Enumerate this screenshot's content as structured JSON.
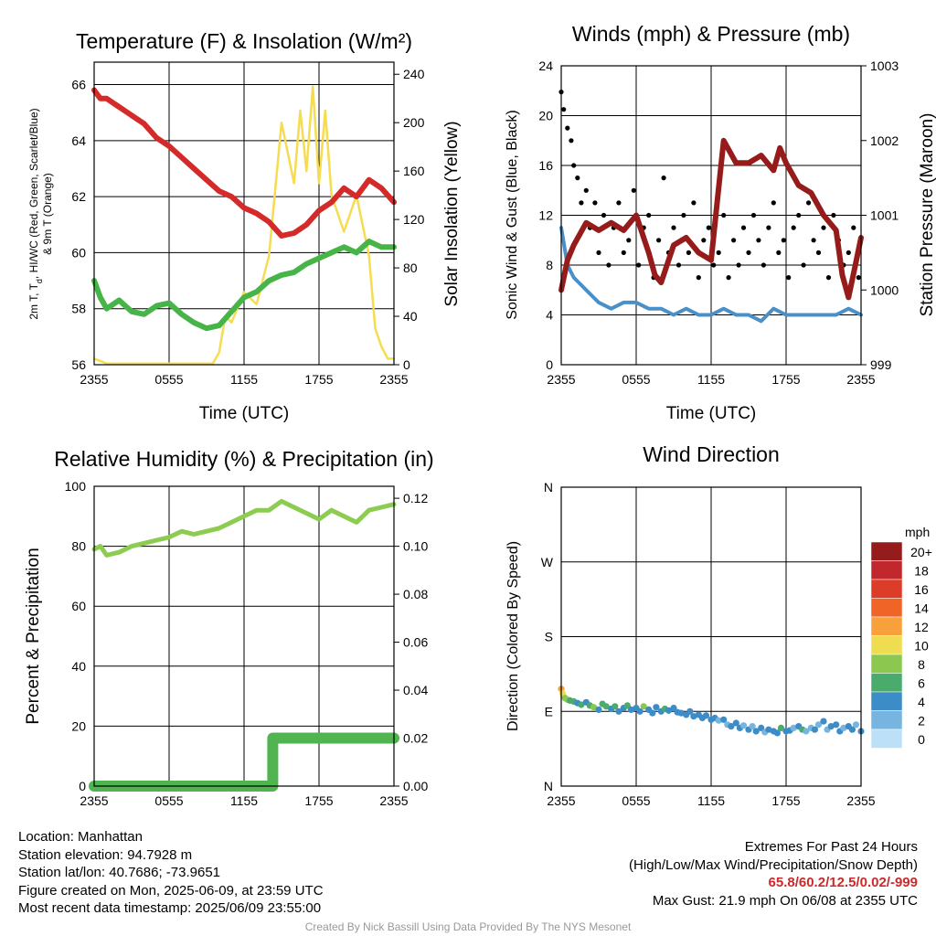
{
  "chart_data": [
    {
      "type": "line",
      "title": "Temperature (F) & Insolation (W/m²)",
      "xlabel": "Time (UTC)",
      "ylabel": "2m T, Td, HI/WC (Red, Green, Scarlet/Blue) & 9m T (Orange)",
      "ylabel_lines": [
        "2m T, T",
        "d",
        ", HI/WC (Red, Green, Scarlet/Blue)",
        "& 9m T (Orange)"
      ],
      "ylabel_right": "Solar Insolation (Yellow)",
      "x_ticks": [
        "2355",
        "0555",
        "1155",
        "1755",
        "2355"
      ],
      "ylim": [
        56,
        66.8
      ],
      "y_ticks": [
        56,
        58,
        60,
        62,
        64,
        66
      ],
      "ylim_right": [
        0,
        250
      ],
      "y_ticks_right": [
        0,
        40,
        80,
        120,
        160,
        200,
        240
      ],
      "grid": true,
      "series": [
        {
          "color": "#d42a2a",
          "axis": "left",
          "x": [
            0,
            0.5,
            1,
            2,
            3,
            4,
            5,
            6,
            7,
            8,
            9,
            10,
            11,
            12,
            13,
            14,
            15,
            16,
            17,
            18,
            19,
            20,
            21,
            22,
            23,
            24
          ],
          "y": [
            65.8,
            65.5,
            65.5,
            65.2,
            64.9,
            64.6,
            64.1,
            63.8,
            63.4,
            63.0,
            62.6,
            62.2,
            62.0,
            61.6,
            61.4,
            61.1,
            60.6,
            60.7,
            61.0,
            61.5,
            61.8,
            62.3,
            62.0,
            62.6,
            62.3,
            61.8
          ]
        },
        {
          "color": "#46b446",
          "axis": "left",
          "x": [
            0,
            0.5,
            1,
            2,
            3,
            4,
            5,
            6,
            7,
            8,
            9,
            10,
            11,
            12,
            13,
            14,
            15,
            16,
            17,
            18,
            19,
            20,
            21,
            22,
            23,
            24
          ],
          "y": [
            59.0,
            58.4,
            58.0,
            58.3,
            57.9,
            57.8,
            58.1,
            58.2,
            57.8,
            57.5,
            57.3,
            57.4,
            57.9,
            58.4,
            58.6,
            59.0,
            59.2,
            59.3,
            59.6,
            59.8,
            60.0,
            60.2,
            60.0,
            60.4,
            60.2,
            60.2
          ]
        },
        {
          "color": "#f5dc50",
          "axis": "right",
          "x": [
            0,
            1,
            2,
            3,
            4,
            5,
            6,
            7,
            8,
            9,
            9.5,
            10,
            10.5,
            11,
            12,
            13,
            14,
            15,
            16,
            16.5,
            17,
            17.5,
            18,
            18.5,
            19,
            20,
            21,
            22,
            22.5,
            23,
            23.5,
            24
          ],
          "y": [
            5,
            1,
            1,
            1,
            1,
            1,
            1,
            1,
            1,
            1,
            1,
            10,
            40,
            35,
            60,
            50,
            90,
            200,
            150,
            210,
            160,
            230,
            150,
            210,
            140,
            110,
            140,
            90,
            30,
            15,
            5,
            5
          ]
        }
      ]
    },
    {
      "type": "line",
      "title": "Winds (mph) & Pressure (mb)",
      "xlabel": "Time (UTC)",
      "ylabel": "Sonic Wind & Gust (Blue, Black)",
      "ylabel_right": "Station Pressure (Maroon)",
      "x_ticks": [
        "2355",
        "0555",
        "1155",
        "1755",
        "2355"
      ],
      "ylim": [
        0,
        24
      ],
      "y_ticks": [
        0,
        4,
        8,
        12,
        16,
        20,
        24
      ],
      "ylim_right": [
        999,
        1003
      ],
      "y_ticks_right": [
        999,
        1000,
        1001,
        1002,
        1003
      ],
      "grid": true,
      "series": [
        {
          "color": "#4a90c8",
          "axis": "left",
          "style": "line",
          "x": [
            0,
            0.5,
            1,
            2,
            3,
            4,
            5,
            6,
            7,
            8,
            9,
            10,
            11,
            12,
            13,
            14,
            15,
            16,
            17,
            18,
            19,
            20,
            21,
            22,
            23,
            24
          ],
          "y": [
            11,
            8,
            7,
            6,
            5,
            4.5,
            5,
            5,
            4.5,
            4.5,
            4,
            4.5,
            4,
            4,
            4.5,
            4,
            4,
            3.5,
            4.5,
            4,
            4,
            4,
            4,
            4,
            4.5,
            4
          ]
        },
        {
          "color": "#000000",
          "axis": "left",
          "style": "dots",
          "x": [
            0,
            0.2,
            0.5,
            0.8,
            1,
            1.3,
            1.6,
            2,
            2.3,
            2.7,
            3,
            3.4,
            3.8,
            4.2,
            4.6,
            5,
            5.4,
            5.8,
            6.2,
            6.6,
            7,
            7.4,
            7.8,
            8.2,
            8.6,
            9,
            9.4,
            9.8,
            10.2,
            10.6,
            11,
            11.4,
            11.8,
            12.2,
            12.6,
            13,
            13.4,
            13.8,
            14.2,
            14.6,
            15,
            15.4,
            15.8,
            16.2,
            16.6,
            17,
            17.4,
            17.8,
            18.2,
            18.6,
            19,
            19.4,
            19.8,
            20.2,
            20.6,
            21,
            21.4,
            21.8,
            22.2,
            22.6,
            23,
            23.4,
            23.8
          ],
          "y": [
            21.9,
            20.5,
            19,
            18,
            16,
            15,
            13,
            14,
            11,
            13,
            9,
            12,
            8,
            11,
            13,
            9,
            10,
            14,
            8,
            11,
            12,
            7,
            10,
            15,
            9,
            11,
            8,
            12,
            9,
            13,
            7,
            10,
            11,
            8,
            9,
            12,
            7,
            10,
            8,
            11,
            9,
            12,
            10,
            8,
            11,
            13,
            9,
            10,
            7,
            11,
            12,
            8,
            13,
            10,
            9,
            11,
            7,
            12,
            10,
            8,
            9,
            11,
            7
          ]
        },
        {
          "color": "#961c1c",
          "axis": "right",
          "style": "line",
          "x": [
            0,
            0.5,
            1,
            2,
            3,
            4,
            5,
            6,
            7,
            7.5,
            8,
            9,
            10,
            11,
            12,
            12.5,
            13,
            14,
            15,
            16,
            17,
            17.5,
            18,
            19,
            20,
            21,
            22,
            22.5,
            23,
            23.5,
            24
          ],
          "y": [
            1000.0,
            1000.4,
            1000.6,
            1000.9,
            1000.8,
            1000.9,
            1000.8,
            1001.0,
            1000.5,
            1000.2,
            1000.1,
            1000.6,
            1000.7,
            1000.5,
            1000.4,
            1001.2,
            1002.0,
            1001.7,
            1001.7,
            1001.8,
            1001.6,
            1001.9,
            1001.7,
            1001.4,
            1001.3,
            1001.0,
            1000.8,
            1000.2,
            999.9,
            1000.3,
            1000.7
          ]
        }
      ]
    },
    {
      "type": "line",
      "title": "Relative Humidity (%) & Precipitation (in)",
      "ylabel": "Percent & Precipitation",
      "x_ticks": [
        "2355",
        "0555",
        "1155",
        "1755",
        "2355"
      ],
      "ylim": [
        0,
        100
      ],
      "y_ticks": [
        0,
        20,
        40,
        60,
        80,
        100
      ],
      "ylim_right": [
        0,
        0.125
      ],
      "y_ticks_right": [
        "0.00",
        "0.02",
        "0.04",
        "0.06",
        "0.08",
        "0.10",
        "0.12"
      ],
      "grid": true,
      "series": [
        {
          "color": "#8ccc50",
          "axis": "left",
          "x": [
            0,
            0.5,
            1,
            2,
            3,
            4,
            5,
            6,
            7,
            8,
            9,
            10,
            11,
            12,
            13,
            14,
            15,
            16,
            17,
            18,
            19,
            20,
            21,
            22,
            23,
            24
          ],
          "y": [
            79,
            80,
            77,
            78,
            80,
            81,
            82,
            83,
            85,
            84,
            85,
            86,
            88,
            90,
            92,
            92,
            95,
            93,
            91,
            89,
            92,
            90,
            88,
            92,
            93,
            94
          ]
        },
        {
          "color": "#50b450",
          "axis": "right",
          "x": [
            0,
            14.3,
            14.3,
            24
          ],
          "y": [
            0.0,
            0.0,
            0.02,
            0.02
          ]
        }
      ]
    },
    {
      "type": "scatter",
      "title": "Wind Direction",
      "ylabel": "Direction (Colored By Speed)",
      "x_ticks": [
        "2355",
        "0555",
        "1155",
        "1755",
        "2355"
      ],
      "y_ticks": [
        "N",
        "E",
        "S",
        "W",
        "N"
      ],
      "ylim": [
        0,
        360
      ],
      "grid": true,
      "legend": {
        "title": "mph",
        "placement": "right",
        "labels": [
          "20+",
          "18",
          "16",
          "14",
          "12",
          "10",
          "8",
          "6",
          "4",
          "2",
          "0"
        ],
        "colors": [
          "#961c1c",
          "#c0282d",
          "#dc3c28",
          "#f06428",
          "#f8a03c",
          "#f0dc50",
          "#8cc850",
          "#4aac6c",
          "#3c8cc8",
          "#78b4e0",
          "#bce0f8"
        ]
      },
      "points_sampled": {
        "x": [
          0,
          0.1,
          0.2,
          0.3,
          0.5,
          0.7,
          1,
          1.3,
          1.6,
          2,
          2.3,
          2.6,
          3,
          3.3,
          3.6,
          4,
          4.3,
          4.6,
          5,
          5.3,
          5.6,
          6,
          6.3,
          6.6,
          7,
          7.3,
          7.6,
          8,
          8.3,
          8.6,
          9,
          9.3,
          9.6,
          10,
          10.3,
          10.6,
          11,
          11.3,
          11.6,
          12,
          12.3,
          12.6,
          13,
          13.3,
          13.6,
          14,
          14.3,
          14.6,
          15,
          15.3,
          15.6,
          16,
          16.3,
          16.6,
          17,
          17.3,
          17.6,
          18,
          18.3,
          18.6,
          19,
          19.3,
          19.6,
          20,
          20.3,
          20.6,
          21,
          21.3,
          21.6,
          22,
          22.3,
          22.6,
          23,
          23.3,
          23.6,
          24
        ],
        "y": [
          117,
          112,
          108,
          106,
          104,
          103,
          102,
          100,
          98,
          101,
          97,
          95,
          92,
          99,
          96,
          93,
          96,
          90,
          94,
          97,
          92,
          94,
          90,
          96,
          92,
          88,
          95,
          90,
          93,
          91,
          94,
          89,
          88,
          86,
          90,
          84,
          86,
          82,
          85,
          80,
          82,
          79,
          80,
          74,
          72,
          76,
          70,
          73,
          68,
          72,
          66,
          70,
          65,
          68,
          66,
          64,
          70,
          66,
          67,
          70,
          72,
          68,
          66,
          70,
          68,
          74,
          78,
          68,
          72,
          74,
          66,
          70,
          72,
          68,
          74,
          66
        ],
        "speed": [
          12,
          10,
          9,
          8,
          8,
          6,
          6,
          4,
          6,
          4,
          6,
          8,
          4,
          6,
          6,
          4,
          6,
          4,
          4,
          6,
          4,
          4,
          4,
          8,
          4,
          4,
          4,
          4,
          6,
          4,
          4,
          4,
          4,
          4,
          4,
          4,
          4,
          4,
          4,
          4,
          4,
          2,
          4,
          2,
          4,
          4,
          4,
          2,
          4,
          2,
          4,
          4,
          2,
          4,
          4,
          4,
          6,
          4,
          4,
          2,
          4,
          6,
          2,
          2,
          4,
          2,
          4,
          2,
          4,
          4,
          4,
          2,
          4,
          4,
          2,
          4
        ]
      }
    }
  ],
  "info_left": [
    "Location: Manhattan",
    "Station elevation: 94.7928 m",
    "Station lat/lon: 40.7686; -73.9651",
    "Figure created on Mon, 2025-06-09, at 23:59 UTC",
    "Most recent data timestamp: 2025/06/09 23:55:00"
  ],
  "info_right": {
    "line1": "Extremes For Past 24 Hours",
    "line2": "(High/Low/Max Wind/Precipitation/Snow Depth)",
    "extremes": "65.8/60.2/12.5/0.02/-999",
    "max_gust": "Max Gust: 21.9 mph On 06/08 at 2355 UTC"
  },
  "credit": "Created By Nick Bassill Using Data Provided By The NYS Mesonet"
}
